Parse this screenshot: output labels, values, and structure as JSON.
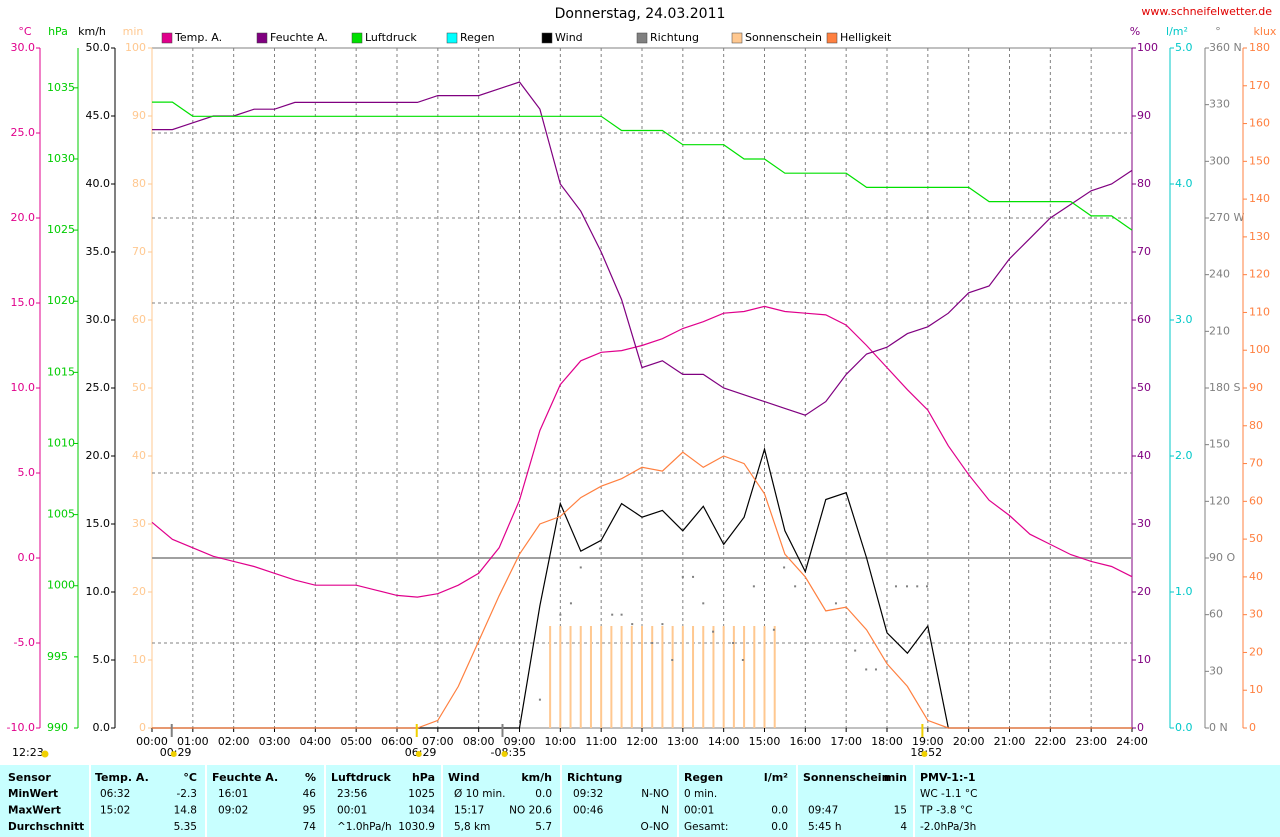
{
  "chart_data": {
    "type": "line",
    "title": "Donnerstag, 24.03.2011",
    "source": "www.schneifelwetter.de",
    "xlim": [
      0,
      24
    ],
    "xticks": [
      {
        "value": 0,
        "label": "00:00"
      },
      {
        "value": 1,
        "label": "01:00"
      },
      {
        "value": 2,
        "label": "02:00"
      },
      {
        "value": 3,
        "label": "03:00"
      },
      {
        "value": 4,
        "label": "04:00"
      },
      {
        "value": 5,
        "label": "05:00"
      },
      {
        "value": 6,
        "label": "06:00"
      },
      {
        "value": 7,
        "label": "07:00"
      },
      {
        "value": 8,
        "label": "08:00"
      },
      {
        "value": 9,
        "label": "09:00"
      },
      {
        "value": 10,
        "label": "10:00"
      },
      {
        "value": 11,
        "label": "11:00"
      },
      {
        "value": 12,
        "label": "12:00"
      },
      {
        "value": 13,
        "label": "13:00"
      },
      {
        "value": 14,
        "label": "14:00"
      },
      {
        "value": 15,
        "label": "15:00"
      },
      {
        "value": 16,
        "label": "16:00"
      },
      {
        "value": 17,
        "label": "17:00"
      },
      {
        "value": 18,
        "label": "18:00"
      },
      {
        "value": 19,
        "label": "19:00"
      },
      {
        "value": 20,
        "label": "20:00"
      },
      {
        "value": 21,
        "label": "21:00"
      },
      {
        "value": 22,
        "label": "22:00"
      },
      {
        "value": 23,
        "label": "23:00"
      },
      {
        "value": 24,
        "label": "24:00"
      }
    ],
    "grid": true,
    "axes": [
      {
        "label": "°C",
        "color": "#e0008c",
        "lim": [
          -10,
          30
        ],
        "ticks": [
          {
            "value": -10,
            "label": "-10.0"
          },
          {
            "value": -5,
            "label": "-5.0"
          },
          {
            "value": 0,
            "label": "0.0"
          },
          {
            "value": 5,
            "label": "5.0"
          },
          {
            "value": 10,
            "label": "10.0"
          },
          {
            "value": 15,
            "label": "15.0"
          },
          {
            "value": 20,
            "label": "20.0"
          },
          {
            "value": 25,
            "label": "25.0"
          },
          {
            "value": 30,
            "label": "30.0"
          }
        ]
      },
      {
        "label": "hPa",
        "color": "#00cc00",
        "lim": [
          990,
          1037.8
        ],
        "ticks": [
          990,
          995,
          1000,
          1005,
          1010,
          1015,
          1020,
          1025,
          1030,
          1035
        ]
      },
      {
        "label": "km/h",
        "color": "#000000",
        "lim": [
          0,
          50
        ],
        "ticks": [
          {
            "value": 0,
            "label": "0.0"
          },
          {
            "value": 5,
            "label": "5.0"
          },
          {
            "value": 10,
            "label": "10.0"
          },
          {
            "value": 15,
            "label": "15.0"
          },
          {
            "value": 20,
            "label": "20.0"
          },
          {
            "value": 25,
            "label": "25.0"
          },
          {
            "value": 30,
            "label": "30.0"
          },
          {
            "value": 35,
            "label": "35.0"
          },
          {
            "value": 40,
            "label": "40.0"
          },
          {
            "value": 45,
            "label": "45.0"
          },
          {
            "value": 50,
            "label": "50.0"
          }
        ]
      },
      {
        "label": "min",
        "color": "#ffc890",
        "lim": [
          0,
          100
        ],
        "ticks": [
          0,
          10,
          20,
          30,
          40,
          50,
          60,
          70,
          80,
          90,
          100
        ]
      },
      {
        "label": "%",
        "color": "#800080",
        "lim": [
          0,
          100
        ],
        "ticks": [
          0,
          10,
          20,
          30,
          40,
          50,
          60,
          70,
          80,
          90,
          100
        ]
      },
      {
        "label": "l/m²",
        "color": "#00c8c8",
        "lim": [
          0,
          5
        ],
        "ticks": [
          {
            "value": 0,
            "label": "0.0"
          },
          {
            "value": 1,
            "label": "1.0"
          },
          {
            "value": 2,
            "label": "2.0"
          },
          {
            "value": 3,
            "label": "3.0"
          },
          {
            "value": 4,
            "label": "4.0"
          },
          {
            "value": 5,
            "label": "5.0"
          }
        ]
      },
      {
        "label": "°",
        "color": "#808080",
        "lim": [
          0,
          360
        ],
        "ticks": [
          {
            "value": 0,
            "label": "0 N"
          },
          30,
          60,
          {
            "value": 90,
            "label": "90 O"
          },
          120,
          150,
          {
            "value": 180,
            "label": "180 S"
          },
          210,
          240,
          {
            "value": 270,
            "label": "270 W"
          },
          300,
          330,
          {
            "value": 360,
            "label": "360 N"
          }
        ]
      },
      {
        "label": "klux",
        "color": "#ff8040",
        "lim": [
          0,
          180
        ],
        "ticks": [
          0,
          10,
          20,
          30,
          40,
          50,
          60,
          70,
          80,
          90,
          100,
          110,
          120,
          130,
          140,
          150,
          160,
          170,
          180
        ]
      }
    ],
    "hgrid": {
      "axis": "°",
      "dashed": [
        45,
        135,
        225,
        270,
        315
      ],
      "solid": 90
    },
    "x": [
      0,
      0.5,
      1,
      1.5,
      2,
      2.5,
      3,
      3.5,
      4,
      4.5,
      5,
      5.5,
      6,
      6.5,
      7,
      7.5,
      8,
      8.5,
      9,
      9.5,
      10,
      10.5,
      11,
      11.5,
      12,
      12.5,
      13,
      13.5,
      14,
      14.5,
      15,
      15.5,
      16,
      16.5,
      17,
      17.5,
      18,
      18.5,
      19,
      19.5,
      20,
      20.5,
      21,
      21.5,
      22,
      22.5,
      23,
      23.5,
      24
    ],
    "series": [
      {
        "name": "Temp. A.",
        "color": "#e0008c",
        "axis": "°C",
        "style": "line",
        "values": [
          2.1,
          1.1,
          0.6,
          0.1,
          -0.2,
          -0.5,
          -0.9,
          -1.3,
          -1.6,
          -1.6,
          -1.6,
          -1.9,
          -2.2,
          -2.3,
          -2.1,
          -1.6,
          -0.9,
          0.6,
          3.4,
          7.5,
          10.2,
          11.6,
          12.1,
          12.2,
          12.5,
          12.9,
          13.5,
          13.9,
          14.4,
          14.5,
          14.8,
          14.5,
          14.4,
          14.3,
          13.7,
          12.5,
          11.2,
          9.9,
          8.7,
          6.6,
          4.9,
          3.4,
          2.5,
          1.4,
          0.8,
          0.2,
          -0.2,
          -0.5,
          -1.1
        ]
      },
      {
        "name": "Feuchte A.",
        "color": "#800080",
        "axis": "%",
        "style": "line",
        "values": [
          88,
          88,
          89,
          90,
          90,
          91,
          91,
          92,
          92,
          92,
          92,
          92,
          92,
          92,
          93,
          93,
          93,
          94,
          95,
          91,
          80,
          76,
          70,
          63,
          53,
          54,
          52,
          52,
          50,
          49,
          48,
          47,
          46,
          48,
          52,
          55,
          56,
          58,
          59,
          61,
          64,
          65,
          69,
          72,
          75,
          77,
          79,
          80,
          82
        ]
      },
      {
        "name": "Luftdruck",
        "color": "#00e000",
        "axis": "hPa",
        "style": "line",
        "values": [
          1034,
          1034,
          1033,
          1033,
          1033,
          1033,
          1033,
          1033,
          1033,
          1033,
          1033,
          1033,
          1033,
          1033,
          1033,
          1033,
          1033,
          1033,
          1033,
          1033,
          1033,
          1033,
          1033,
          1032,
          1032,
          1032,
          1031,
          1031,
          1031,
          1030,
          1030,
          1029,
          1029,
          1029,
          1029,
          1028,
          1028,
          1028,
          1028,
          1028,
          1028,
          1027,
          1027,
          1027,
          1027,
          1027,
          1026,
          1026,
          1025
        ]
      },
      {
        "name": "Regen",
        "color": "#00ffff",
        "axis": "l/m²",
        "style": "line"
      },
      {
        "name": "Wind",
        "color": "#000000",
        "axis": "km/h",
        "style": "line",
        "values": [
          0,
          0,
          0,
          0,
          0,
          0,
          0,
          0,
          0,
          0,
          0,
          0,
          0,
          0,
          0,
          0,
          0,
          0,
          0,
          9.0,
          16.5,
          13.0,
          13.8,
          16.5,
          15.5,
          16.0,
          14.5,
          16.3,
          13.5,
          15.5,
          20.5,
          14.5,
          11.5,
          16.8,
          17.3,
          12.5,
          7.0,
          5.5,
          7.5,
          0,
          0,
          0,
          0,
          0,
          0,
          0,
          0,
          0,
          0
        ]
      },
      {
        "name": "Richtung",
        "color": "#808080",
        "axis": "°",
        "style": "dots",
        "x": [
          9.5,
          10.0,
          10.26,
          10.5,
          10.97,
          11.27,
          11.5,
          11.76,
          12.25,
          12.5,
          12.74,
          13.0,
          13.25,
          13.5,
          13.74,
          14.23,
          14.47,
          14.74,
          15.23,
          15.48,
          15.75,
          16.75,
          17.22,
          17.49,
          17.73,
          18.22,
          18.49,
          18.74,
          18.98
        ],
        "values": [
          15,
          60,
          66,
          85,
          95,
          60,
          60,
          55,
          45,
          55,
          36,
          80,
          80,
          66,
          51,
          45,
          36,
          75,
          52,
          85,
          75,
          66,
          41,
          31,
          31,
          75,
          75,
          75,
          75
        ]
      },
      {
        "name": "Sonnenschein",
        "color": "#ffc890",
        "axis": "min",
        "style": "bars",
        "x": [
          9.75,
          10,
          10.25,
          10.5,
          10.75,
          11,
          11.25,
          11.5,
          11.75,
          12,
          12.25,
          12.5,
          12.75,
          13,
          13.25,
          13.5,
          13.75,
          14,
          14.25,
          14.5,
          14.75,
          15,
          15.25
        ],
        "values": [
          15,
          15,
          15,
          15,
          15,
          15,
          15,
          15,
          15,
          15,
          15,
          15,
          15,
          15,
          15,
          15,
          15,
          15,
          15,
          15,
          15,
          15,
          15
        ]
      },
      {
        "name": "Helligkeit",
        "color": "#ff8040",
        "axis": "klux",
        "style": "line",
        "values": [
          0,
          0,
          0,
          0,
          0,
          0,
          0,
          0,
          0,
          0,
          0,
          0,
          0,
          0,
          2,
          11,
          23,
          35,
          46,
          54,
          56,
          61,
          64,
          66,
          69,
          68,
          73,
          69,
          72,
          70,
          62,
          46,
          40,
          31,
          32,
          26,
          17,
          11,
          2,
          0,
          0,
          0,
          0,
          0,
          0,
          0,
          0,
          0,
          0
        ]
      }
    ],
    "events": [
      {
        "x": 0.4833,
        "label": "00:29",
        "color": "#808080"
      },
      {
        "x": 6.4833,
        "label": "06:29",
        "color": "#f0d000"
      },
      {
        "x": 8.5833,
        "label": "-08:35",
        "color": "#808080"
      },
      {
        "x": 18.8667,
        "label": "18:52",
        "color": "#f0d000"
      }
    ],
    "moon_note": "12:23"
  },
  "table": {
    "header": [
      "Sensor",
      "Temp. A.",
      "°C",
      "Feuchte A.",
      "%",
      "Luftdruck",
      "hPa",
      "Wind",
      "km/h",
      "Richtung",
      null,
      "Regen",
      "l/m²",
      "Sonnenschein",
      "min",
      "PMV-1:-1"
    ],
    "rows": [
      [
        "MinWert",
        "06:32",
        "-2.3",
        "16:01",
        "46",
        "23:56",
        "1025",
        "Ø 10 min.",
        "0.0",
        "09:32",
        "N-NO",
        "0 min.",
        null,
        null,
        null,
        "WC -1.1 °C"
      ],
      [
        "MaxWert",
        "15:02",
        "14.8",
        "09:02",
        "95",
        "00:01",
        "1034",
        "15:17",
        "NO 20.6",
        "00:46",
        "N",
        "00:01",
        "0.0",
        "09:47",
        "15",
        "TP -3.8 °C"
      ],
      [
        "Durchschnitt",
        null,
        "5.35",
        null,
        "74",
        "^1.0hPa/h",
        "1030.9",
        "5,8 km",
        "5.7",
        null,
        "O-NO",
        "Gesamt:",
        "0.0",
        "5:45 h",
        "4",
        "-2.0hPa/3h"
      ]
    ]
  }
}
